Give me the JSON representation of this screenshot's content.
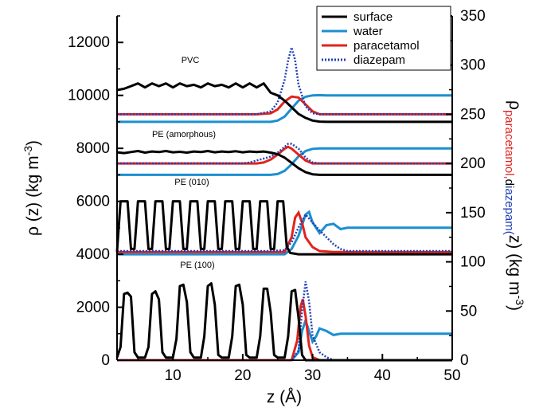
{
  "chart_data": {
    "type": "line",
    "title": "",
    "xlabel": "z (Å)",
    "ylabel_left": "ρ (z) (kg m-3)",
    "ylabel_right": "ρparacetamol,diazepam(z) (kg m-3)",
    "xlim": [
      2,
      50
    ],
    "ylim_left": [
      0,
      13000
    ],
    "ylim_right": [
      0,
      350
    ],
    "x_ticks": [
      "10",
      "20",
      "30",
      "40",
      "50"
    ],
    "y_left_ticks": [
      "0",
      "2000",
      "4000",
      "6000",
      "8000",
      "10000",
      "12000"
    ],
    "y_right_ticks": [
      "0",
      "50",
      "100",
      "150",
      "200",
      "250",
      "300",
      "350"
    ],
    "legend": {
      "placement": "top-right",
      "entries": [
        {
          "label": "surface",
          "color": "#000000",
          "style": "solid"
        },
        {
          "label": "water",
          "color": "#1b8fd0",
          "style": "solid"
        },
        {
          "label": "paracetamol",
          "color": "#e0231f",
          "style": "solid"
        },
        {
          "label": "diazepam",
          "color": "#1f3fb5",
          "style": "dotted"
        }
      ]
    },
    "panels": [
      {
        "label": "PVC",
        "baseline_left": 9000,
        "baseline_right": 250,
        "surface": [
          [
            2,
            10200
          ],
          [
            3,
            10250
          ],
          [
            4,
            10350
          ],
          [
            5,
            10450
          ],
          [
            6,
            10300
          ],
          [
            7,
            10450
          ],
          [
            8,
            10350
          ],
          [
            9,
            10450
          ],
          [
            10,
            10300
          ],
          [
            11,
            10450
          ],
          [
            12,
            10350
          ],
          [
            13,
            10400
          ],
          [
            14,
            10300
          ],
          [
            15,
            10450
          ],
          [
            16,
            10350
          ],
          [
            17,
            10400
          ],
          [
            18,
            10300
          ],
          [
            19,
            10450
          ],
          [
            20,
            10300
          ],
          [
            21,
            10450
          ],
          [
            22,
            10300
          ],
          [
            23,
            10450
          ],
          [
            24,
            10100
          ],
          [
            25,
            10000
          ],
          [
            26,
            9800
          ],
          [
            27,
            9550
          ],
          [
            28,
            9300
          ],
          [
            29,
            9150
          ],
          [
            30,
            9050
          ],
          [
            31,
            9010
          ],
          [
            32,
            9000
          ],
          [
            50,
            9000
          ]
        ],
        "water": [
          [
            2,
            9000
          ],
          [
            24,
            9000
          ],
          [
            25,
            9050
          ],
          [
            26,
            9200
          ],
          [
            27,
            9500
          ],
          [
            28,
            9800
          ],
          [
            29,
            9950
          ],
          [
            30,
            10000
          ],
          [
            31,
            10010
          ],
          [
            32,
            10000
          ],
          [
            50,
            10000
          ]
        ],
        "paracetamol": [
          [
            2,
            250
          ],
          [
            22,
            250
          ],
          [
            24,
            251
          ],
          [
            25,
            255
          ],
          [
            26,
            263
          ],
          [
            27,
            268
          ],
          [
            28,
            267
          ],
          [
            29,
            260
          ],
          [
            30,
            253
          ],
          [
            31,
            250
          ],
          [
            50,
            250
          ]
        ],
        "diazepam": [
          [
            2,
            250
          ],
          [
            22,
            250
          ],
          [
            24,
            253
          ],
          [
            25,
            262
          ],
          [
            26,
            285
          ],
          [
            26.5,
            305
          ],
          [
            27,
            318
          ],
          [
            27.5,
            305
          ],
          [
            28,
            280
          ],
          [
            29,
            258
          ],
          [
            30,
            251
          ],
          [
            31,
            250
          ],
          [
            50,
            250
          ]
        ]
      },
      {
        "label": "PE (amorphous)",
        "baseline_left": 7000,
        "baseline_right": 200,
        "surface": [
          [
            2,
            7850
          ],
          [
            3,
            7820
          ],
          [
            4,
            7860
          ],
          [
            5,
            7900
          ],
          [
            6,
            7840
          ],
          [
            7,
            7880
          ],
          [
            8,
            7860
          ],
          [
            9,
            7900
          ],
          [
            10,
            7850
          ],
          [
            11,
            7870
          ],
          [
            12,
            7840
          ],
          [
            13,
            7880
          ],
          [
            14,
            7860
          ],
          [
            15,
            7900
          ],
          [
            16,
            7850
          ],
          [
            17,
            7880
          ],
          [
            18,
            7860
          ],
          [
            19,
            7890
          ],
          [
            20,
            7850
          ],
          [
            21,
            7880
          ],
          [
            22,
            7860
          ],
          [
            23,
            7880
          ],
          [
            24,
            7840
          ],
          [
            25,
            7780
          ],
          [
            26,
            7650
          ],
          [
            27,
            7450
          ],
          [
            28,
            7250
          ],
          [
            29,
            7100
          ],
          [
            30,
            7020
          ],
          [
            31,
            7000
          ],
          [
            50,
            7000
          ]
        ],
        "water": [
          [
            2,
            7000
          ],
          [
            24,
            7000
          ],
          [
            25,
            7030
          ],
          [
            26,
            7150
          ],
          [
            27,
            7400
          ],
          [
            28,
            7700
          ],
          [
            29,
            7900
          ],
          [
            30,
            7980
          ],
          [
            31,
            8000
          ],
          [
            50,
            8000
          ]
        ],
        "paracetamol": [
          [
            2,
            200
          ],
          [
            22,
            200
          ],
          [
            23,
            201
          ],
          [
            24,
            204
          ],
          [
            25,
            209
          ],
          [
            26,
            215
          ],
          [
            26.5,
            217
          ],
          [
            27,
            215
          ],
          [
            28,
            209
          ],
          [
            29,
            203
          ],
          [
            30,
            200
          ],
          [
            50,
            200
          ]
        ],
        "diazepam": [
          [
            2,
            200
          ],
          [
            20,
            200
          ],
          [
            21,
            201
          ],
          [
            22,
            203
          ],
          [
            23,
            205
          ],
          [
            24,
            207
          ],
          [
            25,
            211
          ],
          [
            26,
            217
          ],
          [
            26.5,
            220
          ],
          [
            27,
            220
          ],
          [
            28,
            215
          ],
          [
            29,
            206
          ],
          [
            30,
            201
          ],
          [
            31,
            200
          ],
          [
            50,
            200
          ]
        ]
      },
      {
        "label": "PE (010)",
        "baseline_left": 4000,
        "baseline_right": 110,
        "surface": [
          [
            2,
            4100
          ],
          [
            2.5,
            6000
          ],
          [
            3.5,
            6000
          ],
          [
            4,
            4200
          ],
          [
            4.5,
            4200
          ],
          [
            5,
            6000
          ],
          [
            6,
            6000
          ],
          [
            6.5,
            4200
          ],
          [
            7,
            4200
          ],
          [
            7.5,
            6000
          ],
          [
            8.5,
            6000
          ],
          [
            9,
            4200
          ],
          [
            9.5,
            4200
          ],
          [
            10,
            6000
          ],
          [
            11,
            6000
          ],
          [
            11.5,
            4200
          ],
          [
            12,
            4200
          ],
          [
            12.5,
            6000
          ],
          [
            13.5,
            6000
          ],
          [
            14,
            4200
          ],
          [
            14.5,
            4200
          ],
          [
            15,
            6000
          ],
          [
            16,
            6000
          ],
          [
            16.5,
            4200
          ],
          [
            17,
            4200
          ],
          [
            17.5,
            6000
          ],
          [
            18.5,
            6000
          ],
          [
            19,
            4200
          ],
          [
            19.5,
            4200
          ],
          [
            20,
            6000
          ],
          [
            21,
            6000
          ],
          [
            21.5,
            4200
          ],
          [
            22,
            4200
          ],
          [
            22.5,
            6000
          ],
          [
            23.5,
            6000
          ],
          [
            24,
            4200
          ],
          [
            24.5,
            4200
          ],
          [
            25,
            6000
          ],
          [
            25.8,
            6000
          ],
          [
            26.3,
            4300
          ],
          [
            26.8,
            4050
          ],
          [
            28,
            4000
          ],
          [
            50,
            4000
          ]
        ],
        "water": [
          [
            2,
            4000
          ],
          [
            26,
            4000
          ],
          [
            27,
            4200
          ],
          [
            28,
            4700
          ],
          [
            29,
            5500
          ],
          [
            29.5,
            5600
          ],
          [
            30,
            5200
          ],
          [
            31,
            4800
          ],
          [
            32,
            5100
          ],
          [
            33,
            5150
          ],
          [
            34,
            4950
          ],
          [
            35,
            5000
          ],
          [
            50,
            5000
          ]
        ],
        "paracetamol": [
          [
            2,
            110
          ],
          [
            26,
            110
          ],
          [
            27,
            125
          ],
          [
            27.5,
            145
          ],
          [
            28,
            150
          ],
          [
            28.5,
            140
          ],
          [
            29,
            125
          ],
          [
            30,
            115
          ],
          [
            31,
            111
          ],
          [
            33,
            110
          ],
          [
            50,
            110
          ]
        ],
        "diazepam": [
          [
            2,
            111
          ],
          [
            24,
            111
          ],
          [
            26,
            112
          ],
          [
            27,
            120
          ],
          [
            28,
            135
          ],
          [
            29,
            148
          ],
          [
            30,
            140
          ],
          [
            31,
            132
          ],
          [
            32,
            125
          ],
          [
            33,
            118
          ],
          [
            34,
            113
          ],
          [
            35,
            111
          ],
          [
            50,
            111
          ]
        ]
      },
      {
        "label": "PE (100)",
        "baseline_left": 0,
        "baseline_right": 0,
        "surface": [
          [
            2,
            100
          ],
          [
            2.5,
            500
          ],
          [
            3,
            2500
          ],
          [
            3.5,
            2550
          ],
          [
            4,
            2400
          ],
          [
            4.5,
            300
          ],
          [
            5,
            100
          ],
          [
            6,
            100
          ],
          [
            6.5,
            500
          ],
          [
            7,
            2500
          ],
          [
            7.5,
            2600
          ],
          [
            8,
            2300
          ],
          [
            8.5,
            300
          ],
          [
            9,
            100
          ],
          [
            10,
            100
          ],
          [
            10.5,
            800
          ],
          [
            11,
            2800
          ],
          [
            11.5,
            2850
          ],
          [
            12,
            2200
          ],
          [
            12.5,
            300
          ],
          [
            13,
            100
          ],
          [
            14,
            100
          ],
          [
            14.5,
            900
          ],
          [
            15,
            2800
          ],
          [
            15.5,
            2900
          ],
          [
            16,
            2100
          ],
          [
            16.5,
            200
          ],
          [
            17,
            100
          ],
          [
            18,
            100
          ],
          [
            18.5,
            900
          ],
          [
            19,
            2800
          ],
          [
            19.5,
            2850
          ],
          [
            20,
            2100
          ],
          [
            20.5,
            200
          ],
          [
            21,
            100
          ],
          [
            22,
            100
          ],
          [
            22.5,
            900
          ],
          [
            23,
            2700
          ],
          [
            23.5,
            2700
          ],
          [
            24,
            1800
          ],
          [
            24.5,
            200
          ],
          [
            25,
            100
          ],
          [
            26,
            100
          ],
          [
            26.5,
            900
          ],
          [
            27,
            2600
          ],
          [
            27.5,
            2650
          ],
          [
            28,
            1600
          ],
          [
            28.5,
            200
          ],
          [
            29,
            0
          ],
          [
            50,
            0
          ]
        ],
        "water": [
          [
            2,
            0
          ],
          [
            27,
            0
          ],
          [
            28,
            300
          ],
          [
            28.5,
            1100
          ],
          [
            29,
            1500
          ],
          [
            29.5,
            1100
          ],
          [
            30,
            700
          ],
          [
            30.5,
            900
          ],
          [
            31,
            1200
          ],
          [
            32,
            1100
          ],
          [
            33,
            950
          ],
          [
            34,
            1000
          ],
          [
            50,
            1000
          ]
        ],
        "paracetamol": [
          [
            2,
            0
          ],
          [
            27,
            0
          ],
          [
            27.8,
            20
          ],
          [
            28.3,
            55
          ],
          [
            28.6,
            62
          ],
          [
            29,
            45
          ],
          [
            29.5,
            15
          ],
          [
            30,
            3
          ],
          [
            31,
            0
          ],
          [
            50,
            0
          ]
        ],
        "diazepam": [
          [
            2,
            0
          ],
          [
            27,
            0
          ],
          [
            28,
            10
          ],
          [
            28.5,
            50
          ],
          [
            29,
            80
          ],
          [
            29.5,
            60
          ],
          [
            30,
            25
          ],
          [
            31,
            8
          ],
          [
            32,
            3
          ],
          [
            33,
            0
          ],
          [
            50,
            0
          ]
        ]
      }
    ],
    "colors": {
      "surface": "#000000",
      "water": "#1b8fd0",
      "paracetamol": "#e0231f",
      "diazepam": "#1f3fb5",
      "right_label_dark": "#000000",
      "right_label_red": "#e0231f",
      "right_label_blue": "#1f3fb5"
    }
  }
}
